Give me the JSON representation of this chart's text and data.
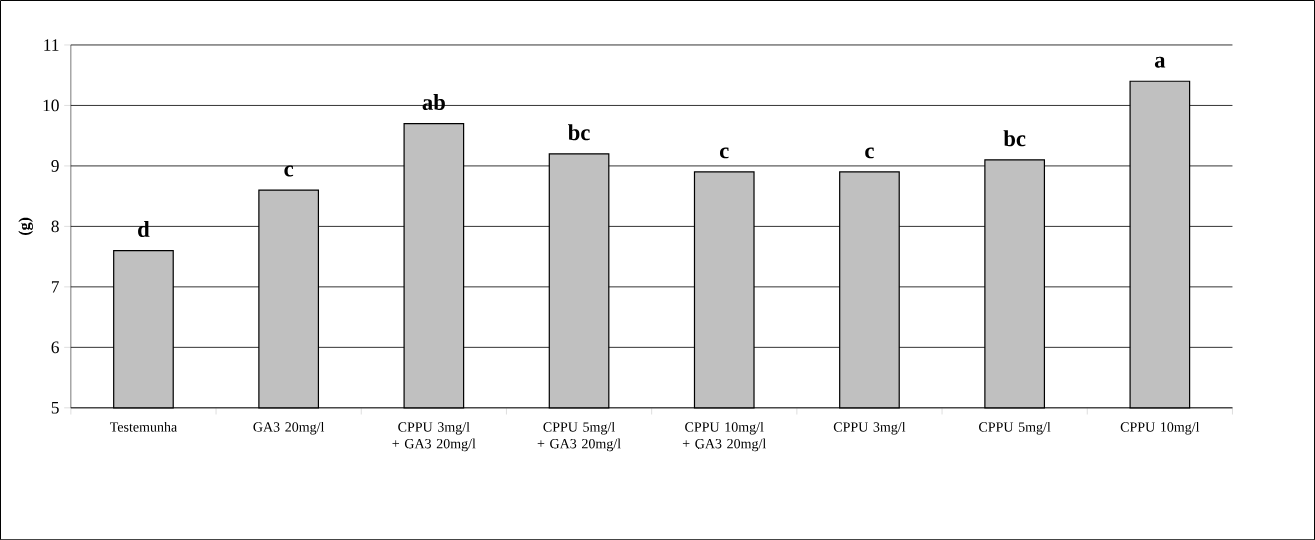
{
  "chart_data": {
    "type": "bar",
    "ylabel": "(g)",
    "categories": [
      "Testemunha",
      "GA3 20mg/l",
      "CPPU 3mg/l + GA3 20mg/l",
      "CPPU 5mg/l + GA3 20mg/l",
      "CPPU 10mg/l + GA3 20mg/l",
      "CPPU 3mg/l",
      "CPPU 5mg/l",
      "CPPU 10mg/l"
    ],
    "values": [
      7.6,
      8.6,
      9.7,
      9.2,
      8.9,
      8.9,
      9.1,
      10.4
    ],
    "color": "#c0c0c0",
    "ylim": [
      5,
      11
    ],
    "yticks": [
      5,
      6,
      7,
      8,
      9,
      10,
      11
    ],
    "grid": "y",
    "annotations": [
      {
        "text": "d",
        "x": "Testemunha",
        "y": 7.6
      },
      {
        "text": "c",
        "x": "GA3 20mg/l",
        "y": 8.6
      },
      {
        "text": "ab",
        "x": "CPPU 3mg/l + GA3 20mg/l",
        "y": 9.7
      },
      {
        "text": "bc",
        "x": "CPPU 5mg/l + GA3 20mg/l",
        "y": 9.2
      },
      {
        "text": "c",
        "x": "CPPU 10mg/l + GA3 20mg/l",
        "y": 8.9
      },
      {
        "text": "c",
        "x": "CPPU 3mg/l",
        "y": 8.9
      },
      {
        "text": "bc",
        "x": "CPPU 5mg/l",
        "y": 9.1
      },
      {
        "text": "a",
        "x": "CPPU 10mg/l",
        "y": 10.4
      }
    ]
  }
}
